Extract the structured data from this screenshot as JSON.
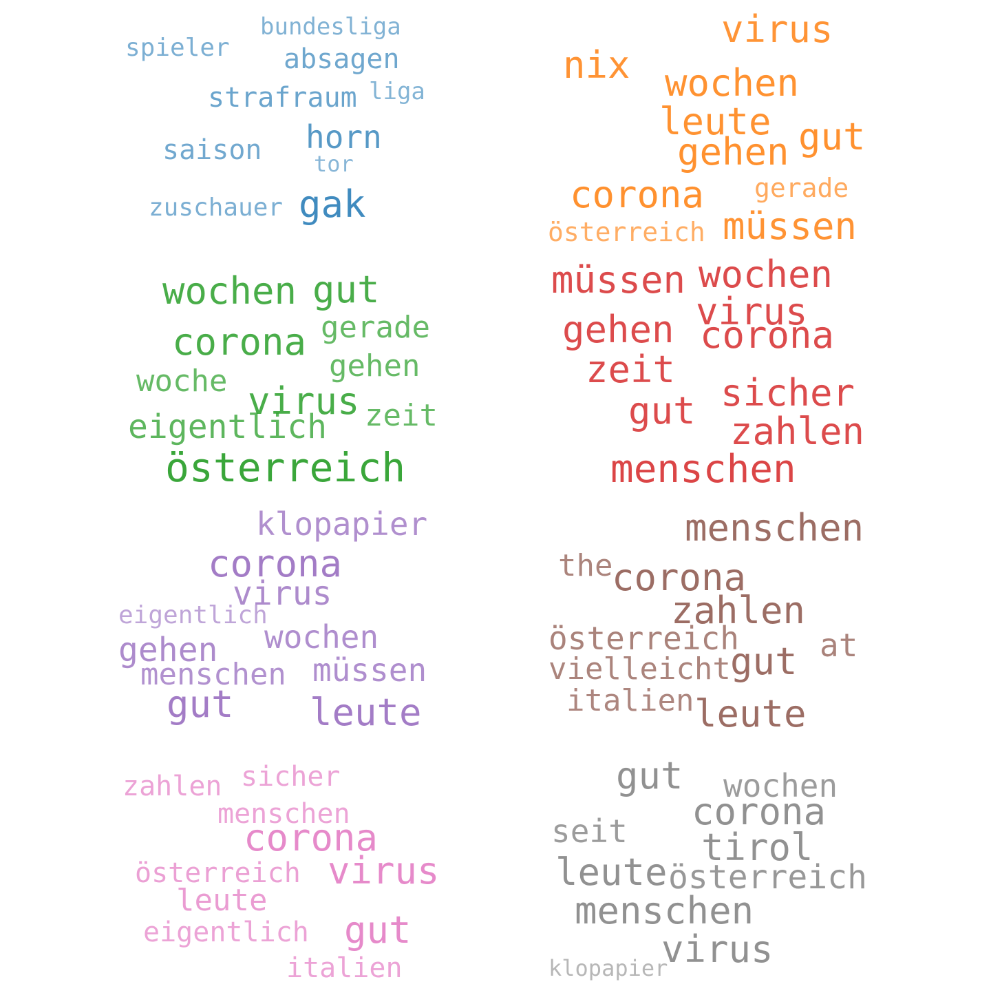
{
  "panels": [
    {
      "color": "#1f77b4",
      "words": [
        {
          "text": "bundesliga",
          "weight": 0.56
        },
        {
          "text": "spieler",
          "weight": 0.58
        },
        {
          "text": "absagen",
          "weight": 0.64
        },
        {
          "text": "strafraum",
          "weight": 0.66
        },
        {
          "text": "liga",
          "weight": 0.55
        },
        {
          "text": "horn",
          "weight": 0.75
        },
        {
          "text": "saison",
          "weight": 0.63
        },
        {
          "text": "tor",
          "weight": 0.53
        },
        {
          "text": "zuschauer",
          "weight": 0.58
        },
        {
          "text": "gak",
          "weight": 0.85
        }
      ]
    },
    {
      "color": "#ff7f0e",
      "words": [
        {
          "text": "virus",
          "weight": 0.83
        },
        {
          "text": "nix",
          "weight": 0.84
        },
        {
          "text": "wochen",
          "weight": 0.85
        },
        {
          "text": "leute",
          "weight": 0.85
        },
        {
          "text": "gut",
          "weight": 0.86
        },
        {
          "text": "gehen",
          "weight": 0.86
        },
        {
          "text": "corona",
          "weight": 0.86
        },
        {
          "text": "gerade",
          "weight": 0.66
        },
        {
          "text": "österreich",
          "weight": 0.64
        },
        {
          "text": "müssen",
          "weight": 0.84
        }
      ]
    },
    {
      "color": "#2ca02c",
      "words": [
        {
          "text": "wochen",
          "weight": 0.86
        },
        {
          "text": "gut",
          "weight": 0.86
        },
        {
          "text": "corona",
          "weight": 0.86
        },
        {
          "text": "gerade",
          "weight": 0.72
        },
        {
          "text": "gehen",
          "weight": 0.72
        },
        {
          "text": "woche",
          "weight": 0.72
        },
        {
          "text": "virus",
          "weight": 0.86
        },
        {
          "text": "zeit",
          "weight": 0.72
        },
        {
          "text": "eigentlich",
          "weight": 0.76
        },
        {
          "text": "österreich",
          "weight": 0.93
        }
      ]
    },
    {
      "color": "#d62728",
      "words": [
        {
          "text": "müssen",
          "weight": 0.83
        },
        {
          "text": "wochen",
          "weight": 0.83
        },
        {
          "text": "virus",
          "weight": 0.83
        },
        {
          "text": "gehen",
          "weight": 0.83
        },
        {
          "text": "corona",
          "weight": 0.83
        },
        {
          "text": "zeit",
          "weight": 0.83
        },
        {
          "text": "sicher",
          "weight": 0.83
        },
        {
          "text": "gut",
          "weight": 0.83
        },
        {
          "text": "zahlen",
          "weight": 0.83
        },
        {
          "text": "menschen",
          "weight": 0.86
        }
      ]
    },
    {
      "color": "#9467bd",
      "words": [
        {
          "text": "klopapier",
          "weight": 0.73
        },
        {
          "text": "corona",
          "weight": 0.86
        },
        {
          "text": "virus",
          "weight": 0.76
        },
        {
          "text": "eigentlich",
          "weight": 0.59
        },
        {
          "text": "wochen",
          "weight": 0.74
        },
        {
          "text": "gehen",
          "weight": 0.76
        },
        {
          "text": "menschen",
          "weight": 0.72
        },
        {
          "text": "müssen",
          "weight": 0.74
        },
        {
          "text": "gut",
          "weight": 0.86
        },
        {
          "text": "leute",
          "weight": 0.86
        }
      ]
    },
    {
      "color": "#8c564b",
      "words": [
        {
          "text": "menschen",
          "weight": 0.86
        },
        {
          "text": "the",
          "weight": 0.72
        },
        {
          "text": "corona",
          "weight": 0.86
        },
        {
          "text": "zahlen",
          "weight": 0.86
        },
        {
          "text": "österreich",
          "weight": 0.73
        },
        {
          "text": "at",
          "weight": 0.73
        },
        {
          "text": "vielleicht",
          "weight": 0.72
        },
        {
          "text": "gut",
          "weight": 0.86
        },
        {
          "text": "italien",
          "weight": 0.71
        },
        {
          "text": "leute",
          "weight": 0.86
        }
      ]
    },
    {
      "color": "#e377c2",
      "words": [
        {
          "text": "zahlen",
          "weight": 0.67
        },
        {
          "text": "sicher",
          "weight": 0.67
        },
        {
          "text": "menschen",
          "weight": 0.67
        },
        {
          "text": "corona",
          "weight": 0.86
        },
        {
          "text": "österreich",
          "weight": 0.69
        },
        {
          "text": "virus",
          "weight": 0.86
        },
        {
          "text": "leute",
          "weight": 0.72
        },
        {
          "text": "eigentlich",
          "weight": 0.67
        },
        {
          "text": "gut",
          "weight": 0.86
        },
        {
          "text": "italien",
          "weight": 0.67
        }
      ]
    },
    {
      "color": "#7f7f7f",
      "words": [
        {
          "text": "gut",
          "weight": 0.86
        },
        {
          "text": "wochen",
          "weight": 0.77
        },
        {
          "text": "corona",
          "weight": 0.86
        },
        {
          "text": "seit",
          "weight": 0.77
        },
        {
          "text": "tirol",
          "weight": 0.86
        },
        {
          "text": "leute",
          "weight": 0.86
        },
        {
          "text": "österreich",
          "weight": 0.8
        },
        {
          "text": "menschen",
          "weight": 0.86
        },
        {
          "text": "virus",
          "weight": 0.86
        },
        {
          "text": "klopapier",
          "weight": 0.56
        }
      ]
    }
  ]
}
